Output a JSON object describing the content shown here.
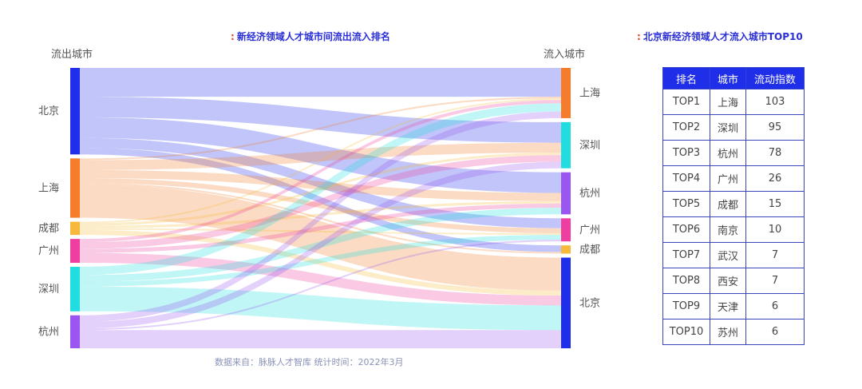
{
  "left_title": "新经济领域人才城市间流出流入排名",
  "right_title": "北京新经济领域人才流入城市TOP10",
  "source_note": "数据来自：脉脉人才智库   统计时间：2022年3月",
  "colors": {
    "title": "#2b2fd6",
    "title_dot": "#e0442a",
    "table_header": "#1f2ee8",
    "table_border": "#3b46b8"
  },
  "chart_data": {
    "type": "sankey",
    "title": "新经济领域人才城市间流出流入排名",
    "left_axis_label": "流出城市",
    "right_axis_label": "流入城市",
    "sources": [
      {
        "name": "北京",
        "color": "#1f2ee8"
      },
      {
        "name": "上海",
        "color": "#f57c2a"
      },
      {
        "name": "成都",
        "color": "#f6b93b"
      },
      {
        "name": "广州",
        "color": "#ee3fa0"
      },
      {
        "name": "深圳",
        "color": "#22dde0"
      },
      {
        "name": "杭州",
        "color": "#9b55f0"
      }
    ],
    "targets": [
      {
        "name": "上海",
        "color": "#f57c2a"
      },
      {
        "name": "深圳",
        "color": "#22dde0"
      },
      {
        "name": "杭州",
        "color": "#9b55f0"
      },
      {
        "name": "广州",
        "color": "#ee3fa0"
      },
      {
        "name": "成都",
        "color": "#f6b93b"
      },
      {
        "name": "北京",
        "color": "#1f2ee8"
      }
    ],
    "flows": [
      {
        "from": "北京",
        "to": "上海",
        "value": 35
      },
      {
        "from": "北京",
        "to": "深圳",
        "value": 25
      },
      {
        "from": "北京",
        "to": "杭州",
        "value": 25
      },
      {
        "from": "北京",
        "to": "广州",
        "value": 12
      },
      {
        "from": "北京",
        "to": "成都",
        "value": 8
      },
      {
        "from": "上海",
        "to": "上海",
        "value": 2
      },
      {
        "from": "上海",
        "to": "深圳",
        "value": 12
      },
      {
        "from": "上海",
        "to": "杭州",
        "value": 10
      },
      {
        "from": "上海",
        "to": "广州",
        "value": 6
      },
      {
        "from": "上海",
        "to": "成都",
        "value": 2
      },
      {
        "from": "上海",
        "to": "北京",
        "value": 40
      },
      {
        "from": "成都",
        "to": "上海",
        "value": 2
      },
      {
        "from": "成都",
        "to": "深圳",
        "value": 3
      },
      {
        "from": "成都",
        "to": "杭州",
        "value": 3
      },
      {
        "from": "成都",
        "to": "广州",
        "value": 2
      },
      {
        "from": "成都",
        "to": "北京",
        "value": 6
      },
      {
        "from": "广州",
        "to": "上海",
        "value": 4
      },
      {
        "from": "广州",
        "to": "深圳",
        "value": 8
      },
      {
        "from": "广州",
        "to": "杭州",
        "value": 5
      },
      {
        "from": "广州",
        "to": "北京",
        "value": 12
      },
      {
        "from": "深圳",
        "to": "上海",
        "value": 10
      },
      {
        "from": "深圳",
        "to": "杭州",
        "value": 8
      },
      {
        "from": "深圳",
        "to": "广州",
        "value": 6
      },
      {
        "from": "深圳",
        "to": "北京",
        "value": 30
      },
      {
        "from": "杭州",
        "to": "上海",
        "value": 8
      },
      {
        "from": "杭州",
        "to": "深圳",
        "value": 8
      },
      {
        "from": "杭州",
        "to": "广州",
        "value": 2
      },
      {
        "from": "杭州",
        "to": "北京",
        "value": 22
      }
    ]
  },
  "ranking_table": {
    "title": "北京新经济领域人才流入城市TOP10",
    "headers": [
      "排名",
      "城市",
      "流动指数"
    ],
    "rows": [
      [
        "TOP1",
        "上海",
        "103"
      ],
      [
        "TOP2",
        "深圳",
        "95"
      ],
      [
        "TOP3",
        "杭州",
        "78"
      ],
      [
        "TOP4",
        "广州",
        "26"
      ],
      [
        "TOP5",
        "成都",
        "15"
      ],
      [
        "TOP6",
        "南京",
        "10"
      ],
      [
        "TOP7",
        "武汉",
        "7"
      ],
      [
        "TOP8",
        "西安",
        "7"
      ],
      [
        "TOP9",
        "天津",
        "6"
      ],
      [
        "TOP10",
        "苏州",
        "6"
      ]
    ]
  }
}
